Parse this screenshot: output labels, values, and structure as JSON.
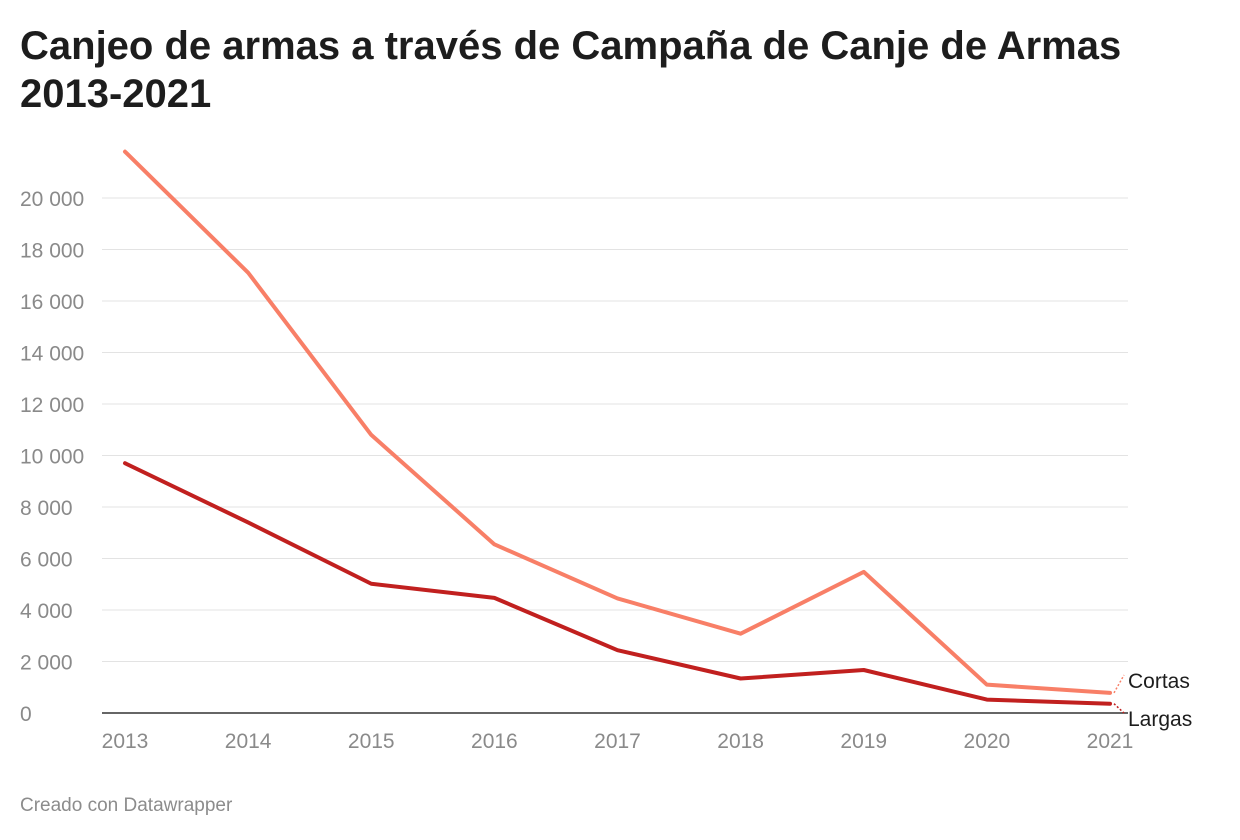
{
  "chart_data": {
    "type": "line",
    "title": "Canjeo de armas a través de Campaña de Canje de Armas 2013-2021",
    "x": [
      "2013",
      "2014",
      "2015",
      "2016",
      "2017",
      "2018",
      "2019",
      "2020",
      "2021"
    ],
    "y_ticks": [
      0,
      2000,
      4000,
      6000,
      8000,
      10000,
      12000,
      14000,
      16000,
      18000,
      20000
    ],
    "y_tick_labels": [
      "0",
      "2 000",
      "4 000",
      "6 000",
      "8 000",
      "10 000",
      "12 000",
      "14 000",
      "16 000",
      "18 000",
      "20 000"
    ],
    "ylim": [
      0,
      20000
    ],
    "grid": true,
    "legend": "inline-end-labels",
    "series": [
      {
        "name": "Cortas",
        "color": "#f87f67",
        "values": [
          21800,
          17100,
          10800,
          6550,
          4450,
          3080,
          5480,
          1100,
          780
        ]
      },
      {
        "name": "Largas",
        "color": "#c1201f",
        "values": [
          9700,
          7400,
          5020,
          4470,
          2440,
          1340,
          1670,
          520,
          360
        ]
      }
    ]
  },
  "footer": "Creado con Datawrapper"
}
